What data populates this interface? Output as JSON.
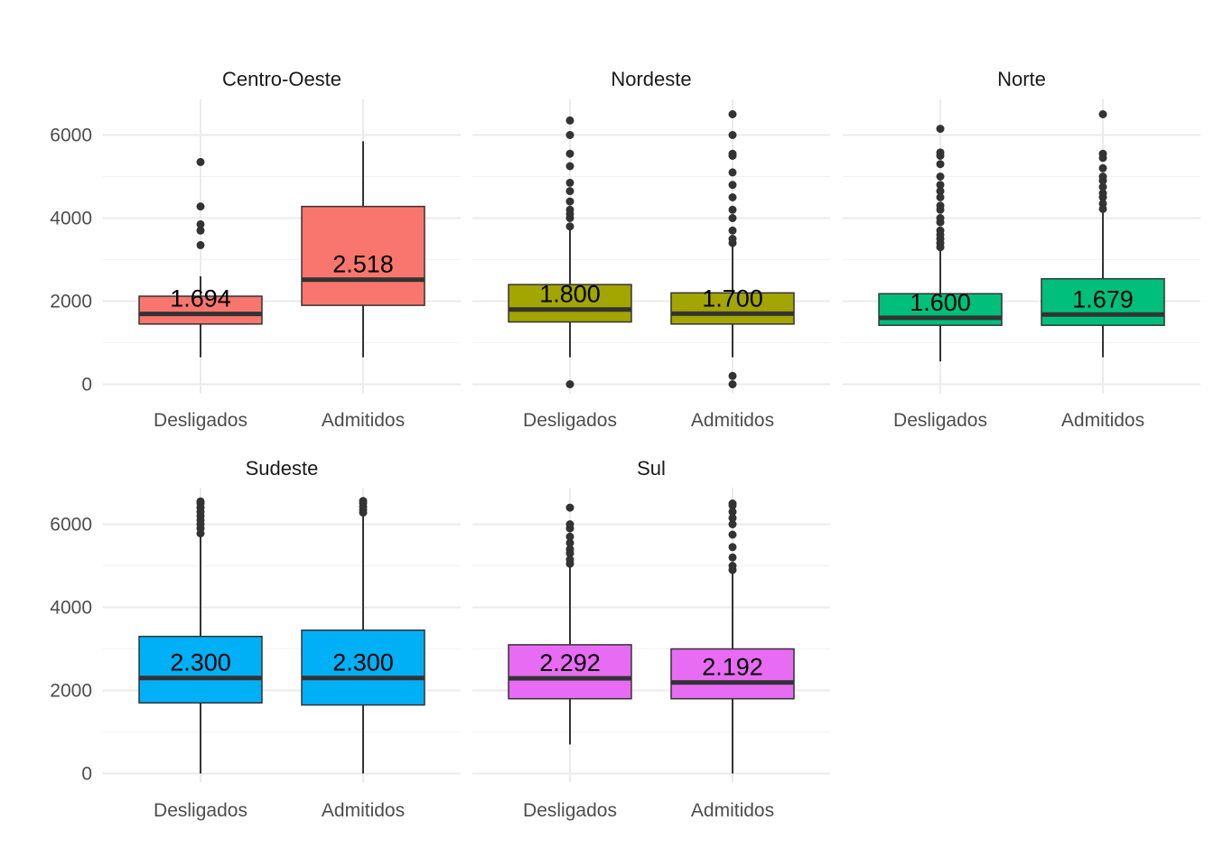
{
  "chart_data": {
    "type": "boxplot",
    "layout": "facet_wrap",
    "ylim": [
      0,
      6900
    ],
    "y_ticks": [
      0,
      2000,
      4000,
      6000
    ],
    "categories": [
      "Desligados",
      "Admitidos"
    ],
    "grid": true,
    "legend": "none",
    "panels": [
      {
        "title": "Centro-Oeste",
        "color": "#F8766D",
        "boxes": [
          {
            "category": "Desligados",
            "lower": 650,
            "q1": 1450,
            "median": 1694,
            "q3": 2120,
            "upper": 2600,
            "label": "1.694",
            "outliers": [
              3350,
              3700,
              3850,
              4280,
              5350
            ]
          },
          {
            "category": "Admitidos",
            "lower": 650,
            "q1": 1900,
            "median": 2518,
            "q3": 4280,
            "upper": 5850,
            "label": "2.518",
            "outliers": []
          }
        ]
      },
      {
        "title": "Nordeste",
        "color": "#A3A500",
        "boxes": [
          {
            "category": "Desligados",
            "lower": 650,
            "q1": 1500,
            "median": 1800,
            "q3": 2400,
            "upper": 3750,
            "label": "1.800",
            "outliers": [
              0,
              3800,
              4000,
              4100,
              4200,
              4400,
              4650,
              4850,
              5250,
              5550,
              6000,
              6350
            ]
          },
          {
            "category": "Admitidos",
            "lower": 650,
            "q1": 1450,
            "median": 1700,
            "q3": 2200,
            "upper": 3350,
            "label": "1.700",
            "outliers": [
              0,
              200,
              3400,
              3500,
              3700,
              4000,
              4200,
              4500,
              4800,
              5100,
              5500,
              5550,
              6000,
              6500
            ]
          }
        ]
      },
      {
        "title": "Norte",
        "color": "#00BF7D",
        "boxes": [
          {
            "category": "Desligados",
            "lower": 550,
            "q1": 1420,
            "median": 1600,
            "q3": 2180,
            "upper": 3250,
            "label": "1.600",
            "outliers": [
              3300,
              3400,
              3500,
              3600,
              3700,
              3900,
              4000,
              4200,
              4300,
              4500,
              4650,
              4800,
              5000,
              5300,
              5500,
              5580,
              6150
            ]
          },
          {
            "category": "Admitidos",
            "lower": 650,
            "q1": 1420,
            "median": 1679,
            "q3": 2540,
            "upper": 4200,
            "label": "1.679",
            "outliers": [
              4220,
              4350,
              4500,
              4600,
              4750,
              4900,
              5000,
              5200,
              5450,
              5550,
              6500
            ]
          }
        ]
      },
      {
        "title": "Sudeste",
        "color": "#00B0F6",
        "boxes": [
          {
            "category": "Desligados",
            "lower": 0,
            "q1": 1700,
            "median": 2300,
            "q3": 3300,
            "upper": 5750,
            "label": "2.300",
            "outliers": [
              5780,
              5900,
              6000,
              6100,
              6200,
              6300,
              6400,
              6500,
              6550
            ]
          },
          {
            "category": "Admitidos",
            "lower": 0,
            "q1": 1650,
            "median": 2300,
            "q3": 3450,
            "upper": 6250,
            "label": "2.300",
            "outliers": [
              6280,
              6350,
              6420,
              6500,
              6560
            ]
          }
        ]
      },
      {
        "title": "Sul",
        "color": "#E76BF3",
        "boxes": [
          {
            "category": "Desligados",
            "lower": 700,
            "q1": 1800,
            "median": 2292,
            "q3": 3100,
            "upper": 5000,
            "label": "2.292",
            "outliers": [
              5050,
              5150,
              5300,
              5400,
              5550,
              5700,
              5900,
              6000,
              6400
            ]
          },
          {
            "category": "Admitidos",
            "lower": 0,
            "q1": 1800,
            "median": 2192,
            "q3": 3000,
            "upper": 4850,
            "label": "2.192",
            "outliers": [
              4900,
              5000,
              5200,
              5450,
              5750,
              6000,
              6150,
              6300,
              6450,
              6500
            ]
          }
        ]
      }
    ]
  }
}
